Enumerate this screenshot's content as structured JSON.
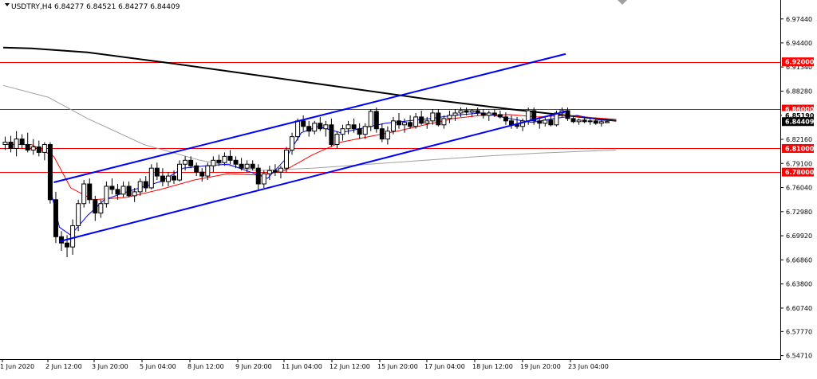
{
  "window": {
    "symbol_label": "USDTRY,H4",
    "ohlc_text": "6.84277 6.84521 6.84277 6.84409"
  },
  "colors": {
    "background": "#ffffff",
    "axis": "#000000",
    "bull_body": "#ffffff",
    "bear_body": "#000000",
    "level_line": "#ff0000",
    "level_label_bg": "#ff0000",
    "channel": "#0000ff",
    "ma_slow": "#000000",
    "ma_mid": "#a0a0a0",
    "ma_fast_red": "#ff0000",
    "ma_fast_blue": "#0000ff",
    "current_label_bg": "#000000"
  },
  "chart_data": {
    "type": "candlestick",
    "title": "USDTRY,H4",
    "ylim": [
      6.5457,
      6.9944
    ],
    "grid": false,
    "y_ticks": [
      "6.97440",
      "6.94400",
      "6.91340",
      "6.88280",
      "6.85220",
      "6.82160",
      "6.79100",
      "6.76040",
      "6.72980",
      "6.69920",
      "6.66860",
      "6.63800",
      "6.60740",
      "6.57770",
      "6.54710"
    ],
    "x_ticks": [
      "1 Jun 2020",
      "2 Jun 12:00",
      "3 Jun 20:00",
      "5 Jun 04:00",
      "8 Jun 12:00",
      "9 Jun 20:00",
      "11 Jun 04:00",
      "12 Jun 12:00",
      "15 Jun 20:00",
      "17 Jun 04:00",
      "18 Jun 12:00",
      "19 Jun 20:00",
      "23 Jun 04:00"
    ],
    "horizontal_levels": [
      {
        "value": 6.92,
        "label": "6.92000"
      },
      {
        "value": 6.86,
        "label": "6.86000"
      },
      {
        "value": 6.81,
        "label": "6.81000"
      },
      {
        "value": 6.78,
        "label": "6.78000"
      }
    ],
    "current_price": {
      "value": 6.84409,
      "label": "6.84409"
    },
    "secondary_price_label": {
      "value": 6.8519,
      "label": "6.85190"
    },
    "candles": [
      {
        "o": 6.815,
        "h": 6.825,
        "l": 6.808,
        "c": 6.818
      },
      {
        "o": 6.818,
        "h": 6.826,
        "l": 6.805,
        "c": 6.81
      },
      {
        "o": 6.81,
        "h": 6.832,
        "l": 6.8,
        "c": 6.822
      },
      {
        "o": 6.822,
        "h": 6.828,
        "l": 6.81,
        "c": 6.815
      },
      {
        "o": 6.815,
        "h": 6.83,
        "l": 6.805,
        "c": 6.808
      },
      {
        "o": 6.808,
        "h": 6.822,
        "l": 6.802,
        "c": 6.812
      },
      {
        "o": 6.812,
        "h": 6.82,
        "l": 6.8,
        "c": 6.805
      },
      {
        "o": 6.805,
        "h": 6.818,
        "l": 6.795,
        "c": 6.815
      },
      {
        "o": 6.815,
        "h": 6.818,
        "l": 6.74,
        "c": 6.745
      },
      {
        "o": 6.745,
        "h": 6.755,
        "l": 6.69,
        "c": 6.698
      },
      {
        "o": 6.698,
        "h": 6.705,
        "l": 6.68,
        "c": 6.69
      },
      {
        "o": 6.69,
        "h": 6.7,
        "l": 6.672,
        "c": 6.685
      },
      {
        "o": 6.685,
        "h": 6.72,
        "l": 6.675,
        "c": 6.712
      },
      {
        "o": 6.712,
        "h": 6.745,
        "l": 6.705,
        "c": 6.74
      },
      {
        "o": 6.74,
        "h": 6.77,
        "l": 6.735,
        "c": 6.765
      },
      {
        "o": 6.765,
        "h": 6.772,
        "l": 6.74,
        "c": 6.745
      },
      {
        "o": 6.745,
        "h": 6.75,
        "l": 6.718,
        "c": 6.728
      },
      {
        "o": 6.728,
        "h": 6.745,
        "l": 6.722,
        "c": 6.74
      },
      {
        "o": 6.74,
        "h": 6.768,
        "l": 6.735,
        "c": 6.762
      },
      {
        "o": 6.762,
        "h": 6.772,
        "l": 6.752,
        "c": 6.758
      },
      {
        "o": 6.758,
        "h": 6.765,
        "l": 6.745,
        "c": 6.752
      },
      {
        "o": 6.752,
        "h": 6.768,
        "l": 6.748,
        "c": 6.762
      },
      {
        "o": 6.762,
        "h": 6.768,
        "l": 6.748,
        "c": 6.75
      },
      {
        "o": 6.75,
        "h": 6.76,
        "l": 6.742,
        "c": 6.755
      },
      {
        "o": 6.755,
        "h": 6.772,
        "l": 6.75,
        "c": 6.768
      },
      {
        "o": 6.768,
        "h": 6.775,
        "l": 6.755,
        "c": 6.76
      },
      {
        "o": 6.76,
        "h": 6.79,
        "l": 6.758,
        "c": 6.785
      },
      {
        "o": 6.785,
        "h": 6.792,
        "l": 6.77,
        "c": 6.775
      },
      {
        "o": 6.775,
        "h": 6.785,
        "l": 6.762,
        "c": 6.768
      },
      {
        "o": 6.768,
        "h": 6.78,
        "l": 6.762,
        "c": 6.775
      },
      {
        "o": 6.775,
        "h": 6.782,
        "l": 6.765,
        "c": 6.77
      },
      {
        "o": 6.77,
        "h": 6.795,
        "l": 6.768,
        "c": 6.79
      },
      {
        "o": 6.79,
        "h": 6.8,
        "l": 6.782,
        "c": 6.795
      },
      {
        "o": 6.795,
        "h": 6.8,
        "l": 6.785,
        "c": 6.788
      },
      {
        "o": 6.788,
        "h": 6.792,
        "l": 6.775,
        "c": 6.78
      },
      {
        "o": 6.78,
        "h": 6.785,
        "l": 6.768,
        "c": 6.775
      },
      {
        "o": 6.775,
        "h": 6.792,
        "l": 6.77,
        "c": 6.788
      },
      {
        "o": 6.788,
        "h": 6.8,
        "l": 6.78,
        "c": 6.795
      },
      {
        "o": 6.795,
        "h": 6.802,
        "l": 6.788,
        "c": 6.792
      },
      {
        "o": 6.792,
        "h": 6.805,
        "l": 6.788,
        "c": 6.8
      },
      {
        "o": 6.8,
        "h": 6.808,
        "l": 6.79,
        "c": 6.795
      },
      {
        "o": 6.795,
        "h": 6.8,
        "l": 6.785,
        "c": 6.79
      },
      {
        "o": 6.79,
        "h": 6.798,
        "l": 6.782,
        "c": 6.785
      },
      {
        "o": 6.785,
        "h": 6.795,
        "l": 6.78,
        "c": 6.79
      },
      {
        "o": 6.79,
        "h": 6.795,
        "l": 6.782,
        "c": 6.785
      },
      {
        "o": 6.785,
        "h": 6.79,
        "l": 6.758,
        "c": 6.765
      },
      {
        "o": 6.765,
        "h": 6.782,
        "l": 6.76,
        "c": 6.778
      },
      {
        "o": 6.778,
        "h": 6.788,
        "l": 6.77,
        "c": 6.782
      },
      {
        "o": 6.782,
        "h": 6.79,
        "l": 6.775,
        "c": 6.78
      },
      {
        "o": 6.78,
        "h": 6.788,
        "l": 6.772,
        "c": 6.785
      },
      {
        "o": 6.785,
        "h": 6.812,
        "l": 6.78,
        "c": 6.808
      },
      {
        "o": 6.808,
        "h": 6.83,
        "l": 6.802,
        "c": 6.825
      },
      {
        "o": 6.825,
        "h": 6.848,
        "l": 6.82,
        "c": 6.845
      },
      {
        "o": 6.845,
        "h": 6.852,
        "l": 6.832,
        "c": 6.838
      },
      {
        "o": 6.838,
        "h": 6.845,
        "l": 6.825,
        "c": 6.832
      },
      {
        "o": 6.832,
        "h": 6.845,
        "l": 6.828,
        "c": 6.842
      },
      {
        "o": 6.842,
        "h": 6.85,
        "l": 6.832,
        "c": 6.835
      },
      {
        "o": 6.835,
        "h": 6.845,
        "l": 6.825,
        "c": 6.84
      },
      {
        "o": 6.84,
        "h": 6.848,
        "l": 6.812,
        "c": 6.815
      },
      {
        "o": 6.815,
        "h": 6.832,
        "l": 6.81,
        "c": 6.828
      },
      {
        "o": 6.828,
        "h": 6.84,
        "l": 6.82,
        "c": 6.835
      },
      {
        "o": 6.835,
        "h": 6.845,
        "l": 6.828,
        "c": 6.84
      },
      {
        "o": 6.84,
        "h": 6.848,
        "l": 6.83,
        "c": 6.835
      },
      {
        "o": 6.835,
        "h": 6.842,
        "l": 6.822,
        "c": 6.828
      },
      {
        "o": 6.828,
        "h": 6.842,
        "l": 6.822,
        "c": 6.838
      },
      {
        "o": 6.838,
        "h": 6.86,
        "l": 6.832,
        "c": 6.857
      },
      {
        "o": 6.857,
        "h": 6.862,
        "l": 6.83,
        "c": 6.835
      },
      {
        "o": 6.835,
        "h": 6.842,
        "l": 6.818,
        "c": 6.822
      },
      {
        "o": 6.822,
        "h": 6.838,
        "l": 6.815,
        "c": 6.832
      },
      {
        "o": 6.832,
        "h": 6.85,
        "l": 6.828,
        "c": 6.845
      },
      {
        "o": 6.845,
        "h": 6.855,
        "l": 6.835,
        "c": 6.84
      },
      {
        "o": 6.84,
        "h": 6.848,
        "l": 6.83,
        "c": 6.843
      },
      {
        "o": 6.843,
        "h": 6.852,
        "l": 6.835,
        "c": 6.838
      },
      {
        "o": 6.838,
        "h": 6.855,
        "l": 6.835,
        "c": 6.85
      },
      {
        "o": 6.85,
        "h": 6.858,
        "l": 6.84,
        "c": 6.842
      },
      {
        "o": 6.842,
        "h": 6.85,
        "l": 6.835,
        "c": 6.845
      },
      {
        "o": 6.845,
        "h": 6.86,
        "l": 6.84,
        "c": 6.855
      },
      {
        "o": 6.855,
        "h": 6.86,
        "l": 6.838,
        "c": 6.84
      },
      {
        "o": 6.84,
        "h": 6.852,
        "l": 6.835,
        "c": 6.848
      },
      {
        "o": 6.848,
        "h": 6.858,
        "l": 6.842,
        "c": 6.852
      },
      {
        "o": 6.852,
        "h": 6.86,
        "l": 6.845,
        "c": 6.855
      },
      {
        "o": 6.855,
        "h": 6.862,
        "l": 6.85,
        "c": 6.858
      },
      {
        "o": 6.858,
        "h": 6.862,
        "l": 6.852,
        "c": 6.856
      },
      {
        "o": 6.856,
        "h": 6.86,
        "l": 6.85,
        "c": 6.858
      },
      {
        "o": 6.858,
        "h": 6.862,
        "l": 6.852,
        "c": 6.855
      },
      {
        "o": 6.855,
        "h": 6.86,
        "l": 6.848,
        "c": 6.852
      },
      {
        "o": 6.852,
        "h": 6.858,
        "l": 6.845,
        "c": 6.855
      },
      {
        "o": 6.855,
        "h": 6.86,
        "l": 6.85,
        "c": 6.853
      },
      {
        "o": 6.853,
        "h": 6.858,
        "l": 6.848,
        "c": 6.85
      },
      {
        "o": 6.85,
        "h": 6.856,
        "l": 6.84,
        "c": 6.845
      },
      {
        "o": 6.845,
        "h": 6.852,
        "l": 6.835,
        "c": 6.84
      },
      {
        "o": 6.84,
        "h": 6.85,
        "l": 6.835,
        "c": 6.838
      },
      {
        "o": 6.838,
        "h": 6.848,
        "l": 6.832,
        "c": 6.845
      },
      {
        "o": 6.845,
        "h": 6.862,
        "l": 6.84,
        "c": 6.858
      },
      {
        "o": 6.858,
        "h": 6.862,
        "l": 6.84,
        "c": 6.845
      },
      {
        "o": 6.845,
        "h": 6.85,
        "l": 6.835,
        "c": 6.842
      },
      {
        "o": 6.842,
        "h": 6.85,
        "l": 6.838,
        "c": 6.846
      },
      {
        "o": 6.846,
        "h": 6.852,
        "l": 6.838,
        "c": 6.84
      },
      {
        "o": 6.84,
        "h": 6.858,
        "l": 6.838,
        "c": 6.855
      },
      {
        "o": 6.855,
        "h": 6.862,
        "l": 6.85,
        "c": 6.858
      },
      {
        "o": 6.858,
        "h": 6.862,
        "l": 6.845,
        "c": 6.848
      },
      {
        "o": 6.848,
        "h": 6.852,
        "l": 6.842,
        "c": 6.844
      },
      {
        "o": 6.844,
        "h": 6.848,
        "l": 6.84,
        "c": 6.846
      },
      {
        "o": 6.846,
        "h": 6.85,
        "l": 6.842,
        "c": 6.844
      },
      {
        "o": 6.844,
        "h": 6.848,
        "l": 6.84,
        "c": 6.845
      },
      {
        "o": 6.845,
        "h": 6.848,
        "l": 6.84,
        "c": 6.842
      },
      {
        "o": 6.842,
        "h": 6.846,
        "l": 6.838,
        "c": 6.844
      },
      {
        "o": 6.84277,
        "h": 6.84521,
        "l": 6.84277,
        "c": 6.84409
      }
    ],
    "channel_lines": [
      {
        "from": {
          "i": 9,
          "v": 6.767
        },
        "to": {
          "i": 100,
          "v": 6.93
        }
      },
      {
        "from": {
          "i": 10,
          "v": 6.692
        },
        "to": {
          "i": 100,
          "v": 6.857
        }
      }
    ],
    "moving_averages": [
      {
        "kind": "slow",
        "points": [
          [
            0,
            6.938
          ],
          [
            5,
            6.937
          ],
          [
            15,
            6.932
          ],
          [
            30,
            6.918
          ],
          [
            45,
            6.903
          ],
          [
            60,
            6.888
          ],
          [
            75,
            6.873
          ],
          [
            90,
            6.86
          ],
          [
            100,
            6.852
          ],
          [
            109,
            6.845
          ]
        ]
      },
      {
        "kind": "mid",
        "points": [
          [
            0,
            6.89
          ],
          [
            8,
            6.875
          ],
          [
            15,
            6.848
          ],
          [
            25,
            6.815
          ],
          [
            35,
            6.795
          ],
          [
            45,
            6.782
          ],
          [
            55,
            6.785
          ],
          [
            65,
            6.79
          ],
          [
            75,
            6.795
          ],
          [
            85,
            6.8
          ],
          [
            95,
            6.804
          ],
          [
            109,
            6.808
          ]
        ]
      },
      {
        "kind": "fast_red",
        "points": [
          [
            0,
            6.815
          ],
          [
            5,
            6.815
          ],
          [
            9,
            6.8
          ],
          [
            12,
            6.76
          ],
          [
            16,
            6.745
          ],
          [
            22,
            6.748
          ],
          [
            28,
            6.758
          ],
          [
            34,
            6.77
          ],
          [
            40,
            6.778
          ],
          [
            46,
            6.776
          ],
          [
            50,
            6.782
          ],
          [
            55,
            6.802
          ],
          [
            60,
            6.818
          ],
          [
            65,
            6.825
          ],
          [
            70,
            6.832
          ],
          [
            75,
            6.84
          ],
          [
            80,
            6.848
          ],
          [
            85,
            6.852
          ],
          [
            90,
            6.853
          ],
          [
            95,
            6.85
          ],
          [
            100,
            6.852
          ],
          [
            105,
            6.849
          ],
          [
            109,
            6.847
          ]
        ]
      },
      {
        "kind": "fast_blue",
        "points": [
          [
            8,
            6.77
          ],
          [
            10,
            6.71
          ],
          [
            12,
            6.7
          ],
          [
            15,
            6.725
          ],
          [
            18,
            6.745
          ],
          [
            22,
            6.755
          ],
          [
            28,
            6.768
          ],
          [
            32,
            6.785
          ],
          [
            36,
            6.788
          ],
          [
            40,
            6.79
          ],
          [
            44,
            6.78
          ],
          [
            47,
            6.772
          ],
          [
            50,
            6.795
          ],
          [
            53,
            6.83
          ],
          [
            56,
            6.838
          ],
          [
            60,
            6.83
          ],
          [
            64,
            6.836
          ],
          [
            68,
            6.842
          ],
          [
            72,
            6.845
          ],
          [
            76,
            6.848
          ],
          [
            80,
            6.852
          ],
          [
            85,
            6.855
          ],
          [
            90,
            6.848
          ],
          [
            94,
            6.843
          ],
          [
            98,
            6.848
          ],
          [
            102,
            6.852
          ],
          [
            106,
            6.846
          ],
          [
            109,
            6.845
          ]
        ]
      }
    ]
  }
}
